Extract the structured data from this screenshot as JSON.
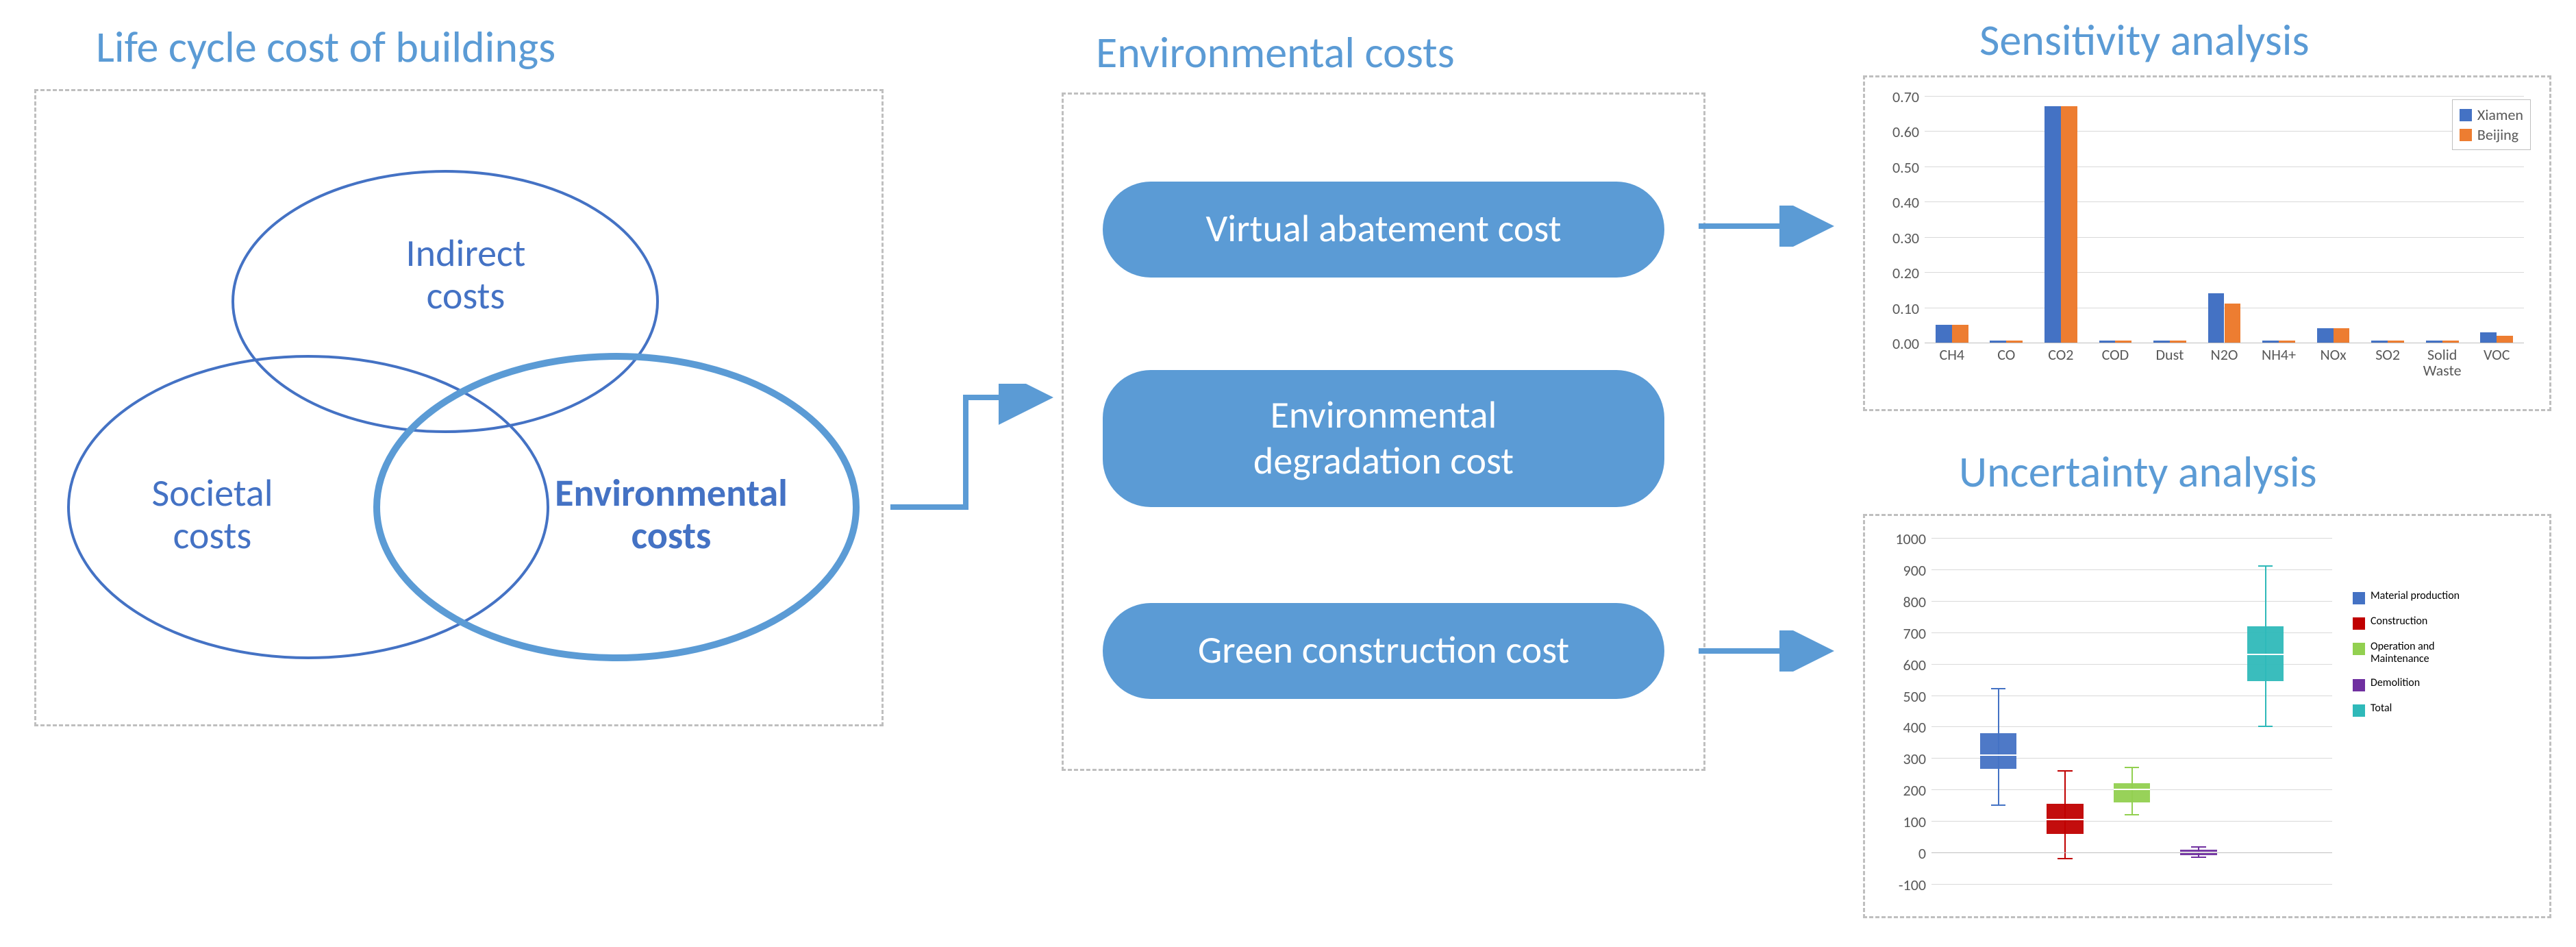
{
  "titles": {
    "lifecycle": "Life cycle cost of buildings",
    "env_costs": "Environmental costs",
    "sensitivity": "Sensitivity analysis",
    "uncertainty": "Uncertainty analysis"
  },
  "venn": {
    "indirect": "Indirect\ncosts",
    "societal": "Societal\ncosts",
    "environmental": "Environmental\ncosts",
    "stroke_normal": "#4472c4",
    "stroke_bold": "#5b9bd5",
    "stroke_width_normal": 4,
    "stroke_width_bold": 10
  },
  "pills": {
    "vac": "Virtual abatement cost",
    "edc": "Environmental\ndegradation cost",
    "gcc": "Green construction cost"
  },
  "arrows": {
    "color": "#5b9bd5",
    "stroke_width": 8
  },
  "sensitivity_chart": {
    "type": "bar",
    "categories": [
      "CH4",
      "CO",
      "CO2",
      "COD",
      "Dust",
      "N2O",
      "NH4+",
      "NOx",
      "SO2",
      "Solid\nWaste",
      "VOC"
    ],
    "series": [
      {
        "name": "Xiamen",
        "color": "#4472c4",
        "values": [
          0.05,
          0.005,
          0.67,
          0.005,
          0.005,
          0.14,
          0.005,
          0.04,
          0.005,
          0.005,
          0.03
        ]
      },
      {
        "name": "Beijing",
        "color": "#ed7d31",
        "values": [
          0.05,
          0.005,
          0.67,
          0.005,
          0.005,
          0.11,
          0.005,
          0.04,
          0.005,
          0.005,
          0.02
        ]
      }
    ],
    "ylim": [
      0,
      0.7
    ],
    "ytick_step": 0.1,
    "ytick_labels": [
      "0.00",
      "0.10",
      "0.20",
      "0.30",
      "0.40",
      "0.50",
      "0.60",
      "0.70"
    ],
    "background": "#ffffff",
    "grid_color": "#d9d9d9",
    "axis_color": "#bfbfbf",
    "label_fontsize": 22,
    "bar_group_width": 0.6
  },
  "uncertainty_chart": {
    "type": "boxplot",
    "ylim": [
      -100,
      1000
    ],
    "ytick_step": 100,
    "ytick_labels": [
      "-100",
      "0",
      "100",
      "200",
      "300",
      "400",
      "500",
      "600",
      "700",
      "800",
      "900",
      "1000"
    ],
    "background": "#ffffff",
    "grid_color": "#d9d9d9",
    "axis_color": "#bfbfbf",
    "label_fontsize": 22,
    "boxes": [
      {
        "name": "Material production",
        "color": "#4472c4",
        "x": 1,
        "whisker_low": 150,
        "q1": 265,
        "median": 310,
        "q3": 380,
        "whisker_high": 520
      },
      {
        "name": "Construction",
        "color": "#c00000",
        "x": 2,
        "whisker_low": -20,
        "q1": 60,
        "median": 105,
        "q3": 155,
        "whisker_high": 260
      },
      {
        "name": "Operation and\nMaintenance",
        "color": "#92d050",
        "x": 3,
        "whisker_low": 120,
        "q1": 160,
        "median": 200,
        "q3": 220,
        "whisker_high": 270
      },
      {
        "name": "Demolition",
        "color": "#7030a0",
        "x": 4,
        "whisker_low": -15,
        "q1": -8,
        "median": 0,
        "q3": 8,
        "whisker_high": 18
      },
      {
        "name": "Total",
        "color": "#2fb9b9",
        "x": 5,
        "whisker_low": 400,
        "q1": 545,
        "median": 630,
        "q3": 720,
        "whisker_high": 910
      }
    ]
  },
  "colors": {
    "title": "#5b9bd5",
    "dashed_border": "#bfbfbf",
    "pill_bg": "#5b9bd5",
    "pill_text": "#ffffff"
  }
}
